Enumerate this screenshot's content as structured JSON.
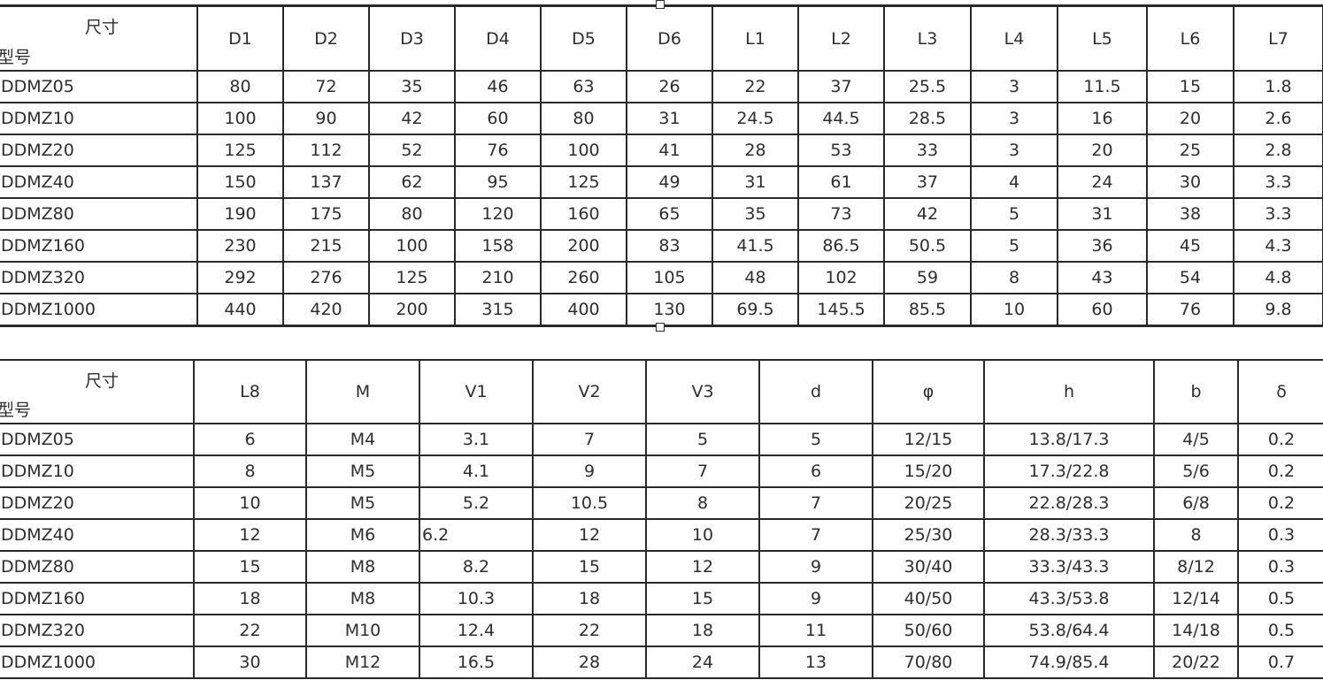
{
  "header_corner": {
    "dimension_label": "尺寸",
    "model_label": "型号"
  },
  "table1": {
    "columns": [
      "D1",
      "D2",
      "D3",
      "D4",
      "D5",
      "D6",
      "L1",
      "L2",
      "L3",
      "L4",
      "L5",
      "L6",
      "L7"
    ],
    "rows": [
      {
        "model": "DDMZ05",
        "values": [
          "80",
          "72",
          "35",
          "46",
          "63",
          "26",
          "22",
          "37",
          "25.5",
          "3",
          "11.5",
          "15",
          "1.8"
        ]
      },
      {
        "model": "DDMZ10",
        "values": [
          "100",
          "90",
          "42",
          "60",
          "80",
          "31",
          "24.5",
          "44.5",
          "28.5",
          "3",
          "16",
          "20",
          "2.6"
        ]
      },
      {
        "model": "DDMZ20",
        "values": [
          "125",
          "112",
          "52",
          "76",
          "100",
          "41",
          "28",
          "53",
          "33",
          "3",
          "20",
          "25",
          "2.8"
        ]
      },
      {
        "model": "DDMZ40",
        "values": [
          "150",
          "137",
          "62",
          "95",
          "125",
          "49",
          "31",
          "61",
          "37",
          "4",
          "24",
          "30",
          "3.3"
        ]
      },
      {
        "model": "DDMZ80",
        "values": [
          "190",
          "175",
          "80",
          "120",
          "160",
          "65",
          "35",
          "73",
          "42",
          "5",
          "31",
          "38",
          "3.3"
        ]
      },
      {
        "model": "DDMZ160",
        "values": [
          "230",
          "215",
          "100",
          "158",
          "200",
          "83",
          "41.5",
          "86.5",
          "50.5",
          "5",
          "36",
          "45",
          "4.3"
        ]
      },
      {
        "model": "DDMZ320",
        "values": [
          "292",
          "276",
          "125",
          "210",
          "260",
          "105",
          "48",
          "102",
          "59",
          "8",
          "43",
          "54",
          "4.8"
        ]
      },
      {
        "model": "DDMZ1000",
        "values": [
          "440",
          "420",
          "200",
          "315",
          "400",
          "130",
          "69.5",
          "145.5",
          "85.5",
          "10",
          "60",
          "76",
          "9.8"
        ]
      }
    ]
  },
  "table2": {
    "columns": [
      "L8",
      "M",
      "V1",
      "V2",
      "V3",
      "d",
      "φ",
      "h",
      "b",
      "δ"
    ],
    "rows": [
      {
        "model": "DDMZ05",
        "values": [
          "6",
          "M4",
          "3.1",
          "7",
          "5",
          "5",
          "12/15",
          "13.8/17.3",
          "4/5",
          "0.2"
        ]
      },
      {
        "model": "DDMZ10",
        "values": [
          "8",
          "M5",
          "4.1",
          "9",
          "7",
          "6",
          "15/20",
          "17.3/22.8",
          "5/6",
          "0.2"
        ]
      },
      {
        "model": "DDMZ20",
        "values": [
          "10",
          "M5",
          "5.2",
          "10.5",
          "8",
          "7",
          "20/25",
          "22.8/28.3",
          "6/8",
          "0.2"
        ]
      },
      {
        "model": "DDMZ40",
        "values": [
          "12",
          "M6",
          "6.2",
          "12",
          "10",
          "7",
          "25/30",
          "28.3/33.3",
          "8",
          "0.3"
        ]
      },
      {
        "model": "DDMZ80",
        "values": [
          "15",
          "M8",
          "8.2",
          "15",
          "12",
          "9",
          "30/40",
          "33.3/43.3",
          "8/12",
          "0.3"
        ]
      },
      {
        "model": "DDMZ160",
        "values": [
          "18",
          "M8",
          "10.3",
          "18",
          "15",
          "9",
          "40/50",
          "43.3/53.8",
          "12/14",
          "0.5"
        ]
      },
      {
        "model": "DDMZ320",
        "values": [
          "22",
          "M10",
          "12.4",
          "22",
          "18",
          "11",
          "50/60",
          "53.8/64.4",
          "14/18",
          "0.5"
        ]
      },
      {
        "model": "DDMZ1000",
        "values": [
          "30",
          "M12",
          "16.5",
          "28",
          "24",
          "13",
          "70/80",
          "74.9/85.4",
          "20/22",
          "0.7"
        ]
      }
    ]
  }
}
